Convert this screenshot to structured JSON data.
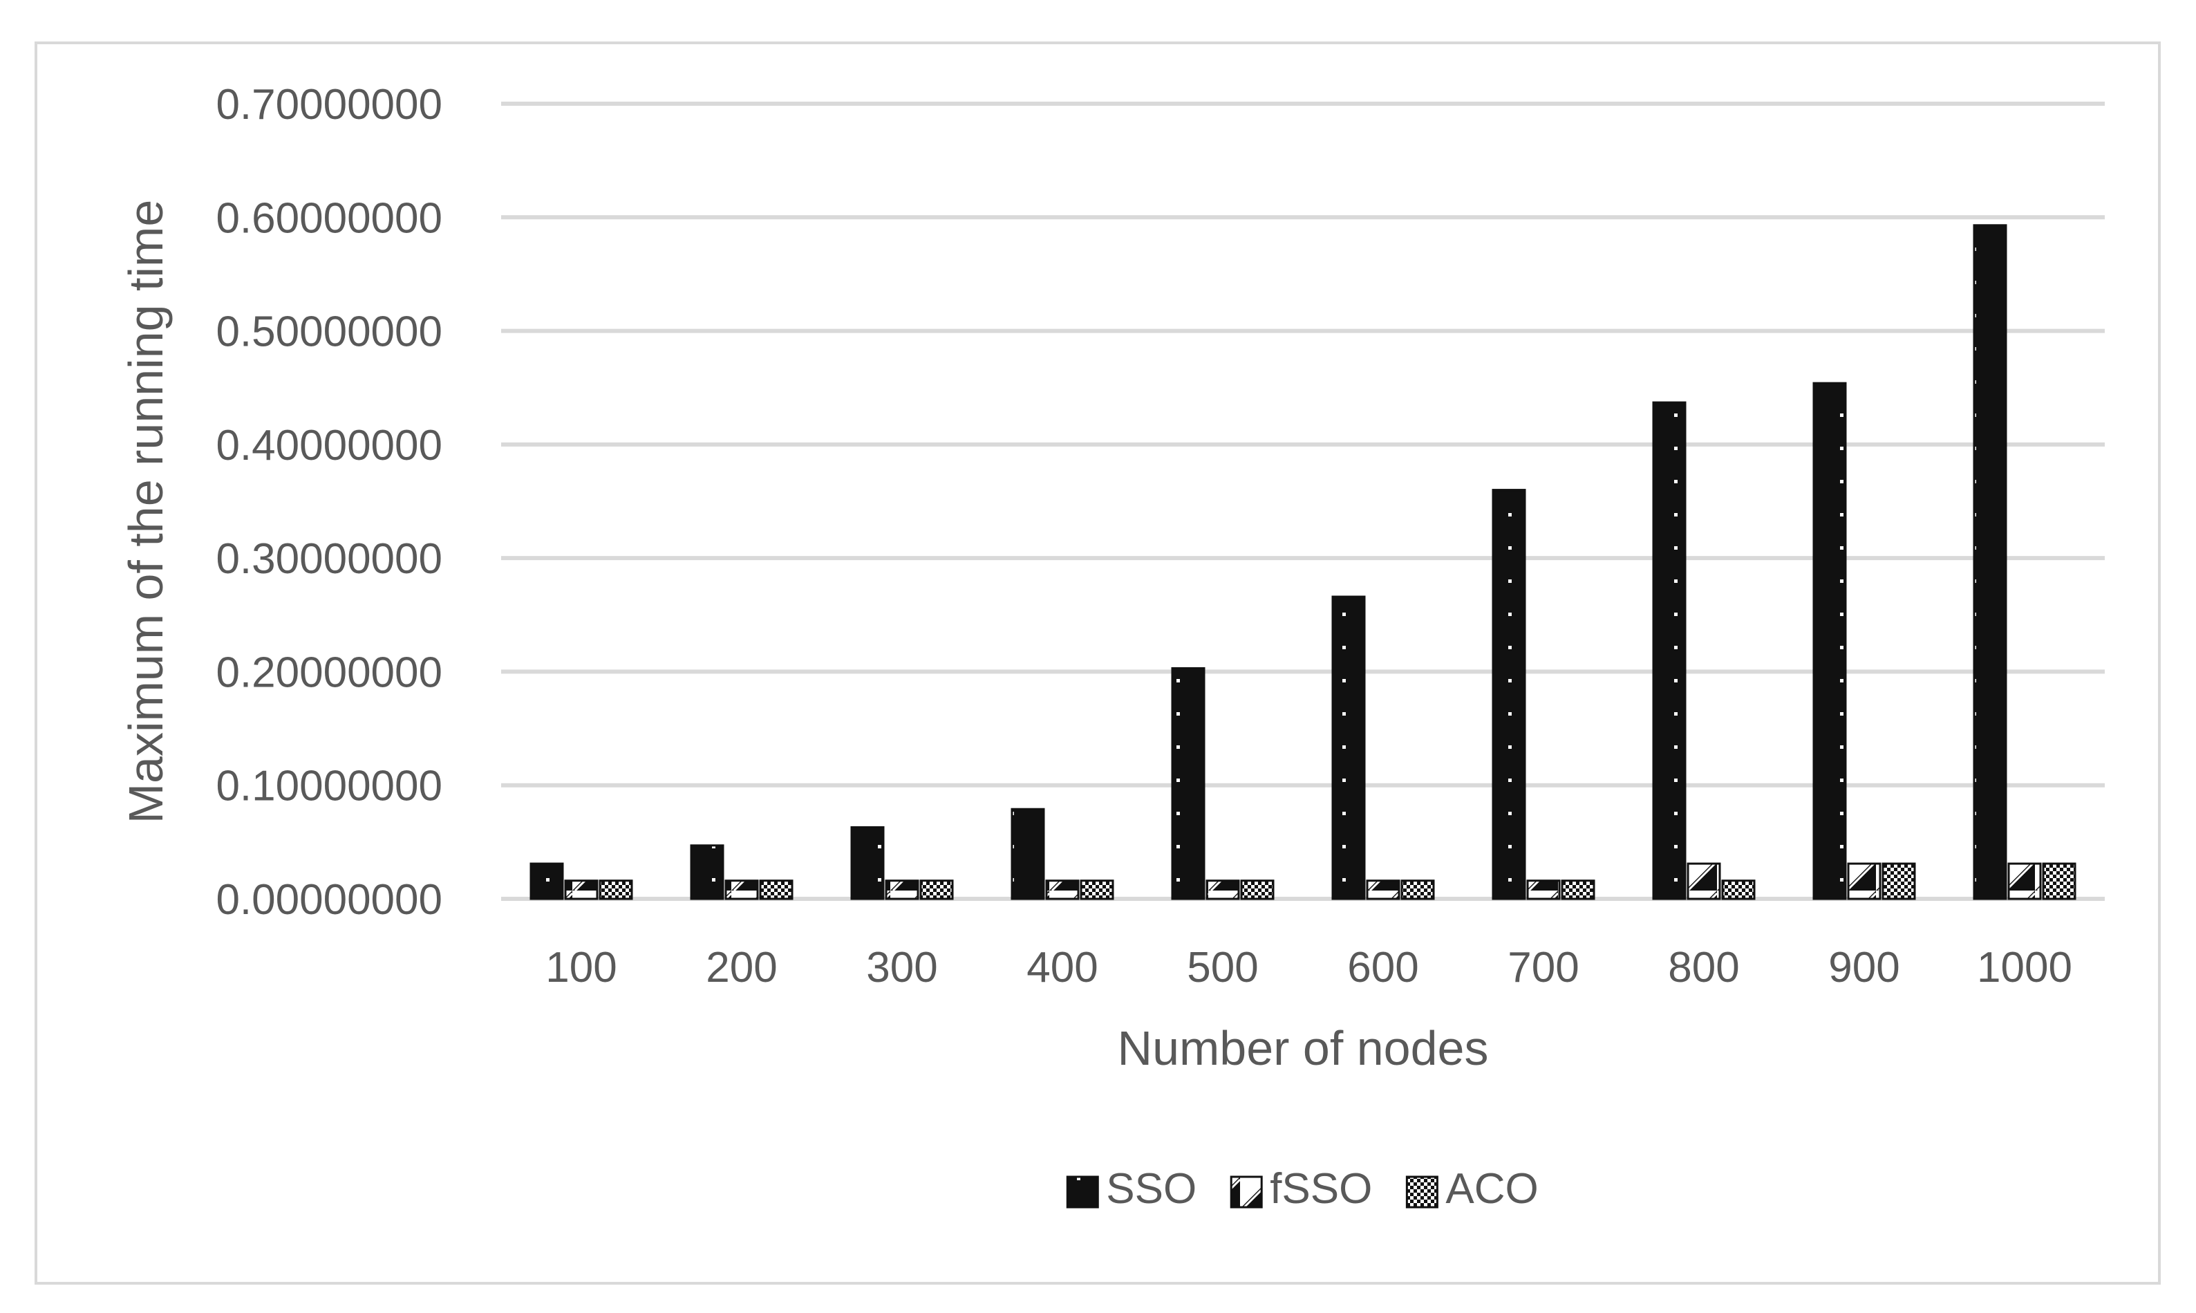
{
  "chart_data": {
    "type": "bar",
    "title": "",
    "xlabel": "Number of nodes",
    "ylabel": "Maximum of the running time",
    "categories": [
      "100",
      "200",
      "300",
      "400",
      "500",
      "600",
      "700",
      "800",
      "900",
      "1000"
    ],
    "series": [
      {
        "name": "SSO",
        "pattern": "dots",
        "values": [
          0.031,
          0.047,
          0.063,
          0.079,
          0.203,
          0.266,
          0.36,
          0.437,
          0.454,
          0.593
        ]
      },
      {
        "name": "fSSO",
        "pattern": "diagonal",
        "values": [
          0.016,
          0.016,
          0.016,
          0.016,
          0.016,
          0.016,
          0.016,
          0.031,
          0.031,
          0.031
        ]
      },
      {
        "name": "ACO",
        "pattern": "checker",
        "values": [
          0.016,
          0.016,
          0.016,
          0.016,
          0.016,
          0.016,
          0.016,
          0.016,
          0.031,
          0.031
        ]
      }
    ],
    "ylim": [
      0,
      0.7
    ],
    "yticks": [
      "0.00000000",
      "0.10000000",
      "0.20000000",
      "0.30000000",
      "0.40000000",
      "0.50000000",
      "0.60000000",
      "0.70000000"
    ],
    "grid": true,
    "legend_position": "bottom",
    "colors": {
      "bar": "#111111",
      "grid": "#d9d9d9",
      "text": "#595959",
      "border": "#d9d9d9"
    }
  }
}
